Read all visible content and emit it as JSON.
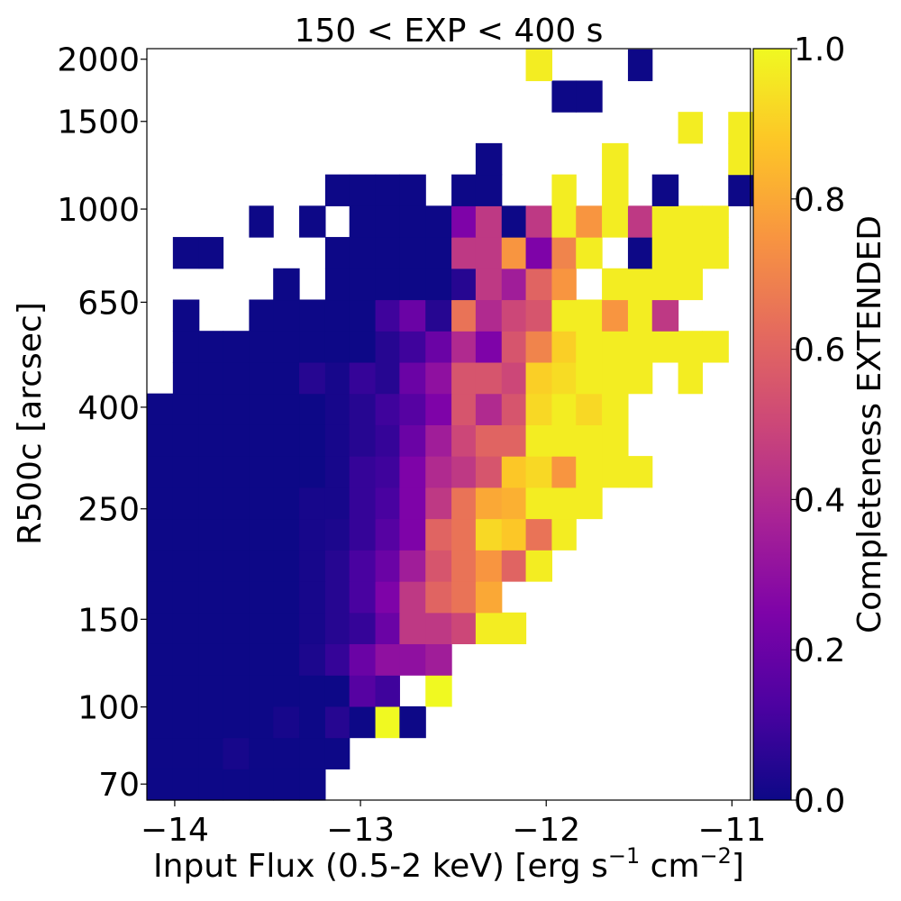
{
  "chart_data": {
    "type": "heatmap",
    "title": "150 < EXP < 400 s",
    "xlabel": "Input Flux (0.5-2 keV) [erg s",
    "xlabel_sup1": "−1",
    "xlabel_mid": " cm",
    "xlabel_sup2": "−2",
    "xlabel_end": "]",
    "ylabel": "R500c [arcsec]",
    "colorbar_label": "Completeness EXTENDED",
    "colormap": "plasma",
    "xlim": [
      -14.15,
      -10.9
    ],
    "ylim": [
      65,
      2100
    ],
    "yscale": "log",
    "x_ticks": [
      -14,
      -13,
      -12,
      -11
    ],
    "x_tick_labels": [
      "−14",
      "−13",
      "−12",
      "−11"
    ],
    "y_ticks": [
      70,
      100,
      150,
      250,
      400,
      650,
      1000,
      1500,
      2000
    ],
    "y_tick_labels": [
      "70",
      "100",
      "150",
      "250",
      "400",
      "650",
      "1000",
      "1500",
      "2000"
    ],
    "colorbar_ticks": [
      0.0,
      0.2,
      0.4,
      0.6,
      0.8,
      1.0
    ],
    "colorbar_tick_labels": [
      "0.0",
      "0.2",
      "0.4",
      "0.6",
      "0.8",
      "1.0"
    ],
    "x_edges": [
      -14.15,
      -14.01,
      -13.87,
      -13.74,
      -13.6,
      -13.47,
      -13.33,
      -13.19,
      -13.06,
      -12.92,
      -12.79,
      -12.65,
      -12.51,
      -12.38,
      -12.24,
      -12.11,
      -11.97,
      -11.84,
      -11.7,
      -11.56,
      -11.43,
      -11.29,
      -11.16,
      -11.02,
      -10.88
    ],
    "y_edges": [
      65.0,
      75.1,
      86.8,
      100.3,
      115.9,
      134.0,
      154.8,
      178.9,
      206.8,
      239.0,
      276.2,
      319.2,
      368.9,
      426.3,
      492.7,
      569.4,
      658.0,
      760.4,
      878.8,
      1015.6,
      1173.7,
      1356.5,
      1567.6,
      1811.6,
      2093.6
    ],
    "z_rows_bottom_to_top": [
      [
        0.0,
        0.0,
        0.0,
        0.0,
        0.0,
        0.0,
        0.0,
        null,
        null,
        null,
        null,
        null,
        null,
        null,
        null,
        null,
        null,
        null,
        null,
        null,
        null,
        null,
        null,
        null
      ],
      [
        0.0,
        0.0,
        0.0,
        0.02,
        0.0,
        0.0,
        0.0,
        0.0,
        null,
        null,
        null,
        null,
        null,
        null,
        null,
        null,
        null,
        null,
        null,
        null,
        null,
        null,
        null,
        null
      ],
      [
        0.0,
        0.0,
        0.0,
        0.0,
        0.0,
        0.02,
        0.0,
        0.05,
        0.0,
        1.0,
        0.0,
        null,
        null,
        null,
        null,
        null,
        null,
        null,
        null,
        null,
        null,
        null,
        null,
        null
      ],
      [
        0.0,
        0.0,
        0.0,
        0.0,
        0.0,
        0.0,
        0.0,
        0.0,
        0.15,
        0.1,
        null,
        1.0,
        null,
        null,
        null,
        null,
        null,
        null,
        null,
        null,
        null,
        null,
        null,
        null
      ],
      [
        0.0,
        0.0,
        0.0,
        0.0,
        0.0,
        0.0,
        0.03,
        0.08,
        0.2,
        0.3,
        0.3,
        0.35,
        null,
        null,
        null,
        null,
        null,
        null,
        null,
        null,
        null,
        null,
        null,
        null
      ],
      [
        0.0,
        0.0,
        0.0,
        0.0,
        0.0,
        0.0,
        0.02,
        0.05,
        0.08,
        0.2,
        0.45,
        0.45,
        0.5,
        0.97,
        0.97,
        null,
        null,
        null,
        null,
        null,
        null,
        null,
        null,
        null
      ],
      [
        0.0,
        0.0,
        0.0,
        0.0,
        0.0,
        0.0,
        0.02,
        0.05,
        0.12,
        0.25,
        0.45,
        0.6,
        0.65,
        0.8,
        null,
        null,
        null,
        null,
        null,
        null,
        null,
        null,
        null,
        null
      ],
      [
        0.0,
        0.0,
        0.0,
        0.0,
        0.0,
        0.0,
        0.02,
        0.05,
        0.12,
        0.2,
        0.35,
        0.55,
        0.65,
        0.75,
        0.6,
        0.97,
        null,
        null,
        null,
        null,
        null,
        null,
        null,
        null
      ],
      [
        0.0,
        0.0,
        0.0,
        0.0,
        0.0,
        0.0,
        0.02,
        0.03,
        0.08,
        0.15,
        0.25,
        0.6,
        0.65,
        0.92,
        0.88,
        0.65,
        0.97,
        null,
        null,
        null,
        null,
        null,
        null,
        null
      ],
      [
        0.0,
        0.0,
        0.0,
        0.0,
        0.0,
        0.0,
        0.02,
        0.02,
        0.08,
        0.12,
        0.25,
        0.45,
        0.65,
        0.8,
        0.82,
        0.97,
        0.97,
        0.97,
        null,
        null,
        null,
        null,
        null,
        null
      ],
      [
        0.0,
        0.0,
        0.0,
        0.0,
        0.0,
        0.0,
        0.0,
        0.02,
        0.08,
        0.1,
        0.25,
        0.4,
        0.45,
        0.55,
        0.88,
        0.92,
        0.75,
        0.97,
        0.97,
        0.97,
        null,
        null,
        null,
        null
      ],
      [
        0.0,
        0.0,
        0.0,
        0.0,
        0.0,
        0.0,
        0.0,
        0.02,
        0.05,
        0.08,
        0.2,
        0.35,
        0.5,
        0.6,
        0.6,
        0.97,
        0.97,
        0.97,
        0.97,
        null,
        null,
        null,
        null,
        null
      ],
      [
        0.0,
        0.0,
        0.0,
        0.0,
        0.0,
        0.0,
        0.0,
        0.02,
        0.05,
        0.1,
        0.15,
        0.25,
        0.55,
        0.4,
        0.55,
        0.92,
        0.97,
        0.92,
        0.97,
        null,
        null,
        null,
        null,
        null
      ],
      [
        null,
        0.0,
        0.0,
        0.0,
        0.0,
        0.0,
        0.05,
        0.02,
        0.08,
        0.05,
        0.2,
        0.3,
        0.55,
        0.55,
        0.5,
        0.9,
        0.93,
        0.97,
        0.97,
        0.97,
        null,
        0.97,
        null,
        null
      ],
      [
        null,
        0.0,
        0.0,
        0.0,
        0.0,
        0.0,
        0.0,
        0.0,
        0.0,
        0.05,
        0.1,
        0.2,
        0.4,
        0.25,
        0.55,
        0.7,
        0.9,
        0.97,
        0.97,
        0.97,
        0.97,
        0.97,
        0.97,
        null
      ],
      [
        null,
        0.0,
        null,
        null,
        0.0,
        0.0,
        0.0,
        0.0,
        0.0,
        0.1,
        0.2,
        0.05,
        0.65,
        0.4,
        0.5,
        0.55,
        0.97,
        0.97,
        0.75,
        0.97,
        0.45,
        null,
        null,
        null
      ],
      [
        null,
        null,
        null,
        null,
        null,
        0.0,
        null,
        0.0,
        0.0,
        0.0,
        0.0,
        0.0,
        0.05,
        0.45,
        0.35,
        0.6,
        0.75,
        null,
        0.97,
        0.97,
        0.97,
        0.97,
        null,
        null
      ],
      [
        null,
        0.0,
        0.0,
        null,
        null,
        null,
        null,
        0.0,
        0.0,
        0.0,
        0.0,
        0.0,
        0.45,
        0.45,
        0.75,
        0.25,
        0.7,
        0.97,
        null,
        0.0,
        0.97,
        0.97,
        0.97,
        null
      ],
      [
        null,
        null,
        null,
        null,
        0.0,
        null,
        0.0,
        null,
        0.0,
        0.0,
        0.0,
        0.0,
        0.25,
        0.45,
        0.0,
        0.45,
        0.97,
        0.75,
        0.97,
        0.45,
        0.97,
        0.97,
        0.97,
        null
      ],
      [
        null,
        null,
        null,
        null,
        null,
        null,
        null,
        0.0,
        0.0,
        0.0,
        0.0,
        null,
        0.0,
        0.0,
        null,
        null,
        0.97,
        null,
        0.97,
        null,
        0.0,
        null,
        null,
        0.0
      ],
      [
        null,
        null,
        null,
        null,
        null,
        null,
        null,
        null,
        null,
        null,
        null,
        null,
        null,
        0.0,
        null,
        null,
        null,
        null,
        0.97,
        null,
        null,
        null,
        null,
        0.97
      ],
      [
        null,
        null,
        null,
        null,
        null,
        null,
        null,
        null,
        null,
        null,
        null,
        null,
        null,
        null,
        null,
        null,
        null,
        null,
        null,
        null,
        null,
        0.97,
        null,
        0.97
      ],
      [
        null,
        null,
        null,
        null,
        null,
        null,
        null,
        null,
        null,
        null,
        null,
        null,
        null,
        null,
        null,
        null,
        0.0,
        0.0,
        null,
        null,
        null,
        null,
        null,
        null
      ],
      [
        null,
        null,
        null,
        null,
        null,
        null,
        null,
        null,
        null,
        null,
        null,
        null,
        null,
        null,
        null,
        0.97,
        null,
        null,
        null,
        0.0,
        null,
        null,
        null,
        null
      ]
    ],
    "grid": false
  }
}
